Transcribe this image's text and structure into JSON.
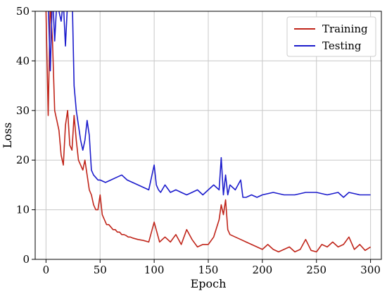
{
  "chart_data": {
    "type": "line",
    "title": "",
    "xlabel": "Epoch",
    "ylabel": "Loss",
    "xlim": [
      -10,
      310
    ],
    "ylim": [
      0,
      50
    ],
    "xticks": [
      0,
      50,
      100,
      150,
      200,
      250,
      300
    ],
    "yticks": [
      0,
      10,
      20,
      30,
      40,
      50
    ],
    "grid": true,
    "legend_position": "top-right",
    "series": [
      {
        "name": "Training",
        "color": "#c0251a",
        "x": [
          0,
          2,
          4,
          6,
          8,
          10,
          12,
          14,
          16,
          18,
          20,
          22,
          24,
          26,
          28,
          30,
          32,
          34,
          36,
          38,
          40,
          42,
          44,
          46,
          48,
          50,
          52,
          54,
          56,
          58,
          60,
          62,
          64,
          66,
          68,
          70,
          72,
          74,
          76,
          78,
          80,
          85,
          90,
          95,
          100,
          105,
          110,
          115,
          120,
          125,
          130,
          135,
          140,
          145,
          150,
          155,
          160,
          162,
          164,
          166,
          168,
          170,
          175,
          180,
          185,
          190,
          195,
          200,
          205,
          210,
          215,
          220,
          225,
          230,
          235,
          240,
          245,
          250,
          255,
          260,
          265,
          270,
          275,
          280,
          285,
          290,
          295,
          300
        ],
        "y": [
          50,
          29,
          52,
          44,
          30,
          28,
          26,
          21,
          19,
          27,
          30,
          23,
          22,
          29,
          24,
          20,
          19,
          18,
          20,
          17,
          14,
          13,
          11,
          10,
          10,
          13,
          9,
          8,
          7,
          7,
          6.5,
          6,
          6,
          5.5,
          5.5,
          5,
          5,
          4.8,
          4.5,
          4.5,
          4.3,
          4,
          3.8,
          3.5,
          7.5,
          3.5,
          4.5,
          3.5,
          5,
          3,
          6,
          4,
          2.5,
          3,
          3,
          4.5,
          8,
          11,
          9,
          12,
          6,
          5,
          4.5,
          4,
          3.5,
          3,
          2.5,
          2,
          3,
          2,
          1.5,
          2,
          2.5,
          1.5,
          2,
          4,
          1.8,
          1.5,
          3,
          2.5,
          3.5,
          2.5,
          3,
          4.5,
          2,
          3,
          1.8,
          2.5
        ]
      },
      {
        "name": "Testing",
        "color": "#1c1ccc",
        "x": [
          0,
          2,
          4,
          6,
          8,
          10,
          12,
          14,
          16,
          18,
          20,
          22,
          24,
          26,
          28,
          30,
          32,
          34,
          36,
          38,
          40,
          42,
          44,
          46,
          48,
          50,
          55,
          60,
          65,
          70,
          75,
          80,
          85,
          90,
          95,
          100,
          102,
          104,
          106,
          110,
          115,
          120,
          125,
          130,
          135,
          140,
          145,
          150,
          155,
          160,
          162,
          164,
          166,
          168,
          170,
          175,
          180,
          182,
          185,
          190,
          195,
          200,
          210,
          220,
          230,
          240,
          250,
          260,
          270,
          275,
          280,
          290,
          300
        ],
        "y": [
          50,
          52,
          38,
          54,
          44,
          52,
          50,
          48,
          52,
          43,
          52,
          51,
          55,
          35,
          30,
          27,
          24,
          22,
          24,
          28,
          25,
          18,
          17,
          16.5,
          16,
          16,
          15.5,
          16,
          16.5,
          17,
          16,
          15.5,
          15,
          14.5,
          14,
          19,
          15,
          14,
          13.5,
          15,
          13.5,
          14,
          13.5,
          13,
          13.5,
          14,
          13,
          14,
          15,
          14,
          20.5,
          13,
          17,
          13,
          15,
          14,
          16,
          12.5,
          12.5,
          13,
          12.5,
          13,
          13.5,
          13,
          13,
          13.5,
          13.5,
          13,
          13.5,
          12.5,
          13.5,
          13,
          13
        ]
      }
    ]
  }
}
